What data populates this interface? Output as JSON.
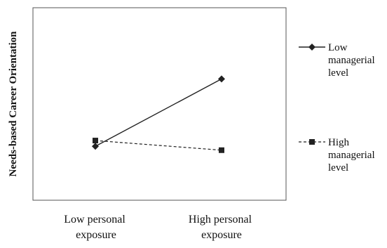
{
  "chart_data": {
    "type": "line",
    "title": "",
    "xlabel": "",
    "ylabel": "Needs-based Career Orientation",
    "categories": [
      [
        "Low personal",
        "exposure"
      ],
      [
        "High personal",
        "exposure"
      ]
    ],
    "series": [
      {
        "name": [
          "Low",
          "managerial",
          "level"
        ],
        "values": [
          0.28,
          0.63
        ],
        "line_style": "solid",
        "marker": "diamond",
        "color": "#222222"
      },
      {
        "name": [
          "High",
          "managerial",
          "level"
        ],
        "values": [
          0.31,
          0.26
        ],
        "line_style": "dashed",
        "marker": "square",
        "color": "#222222"
      }
    ],
    "ylim": [
      0,
      1
    ],
    "grid": false,
    "y_ticks_shown": false,
    "legend_position": "right"
  }
}
